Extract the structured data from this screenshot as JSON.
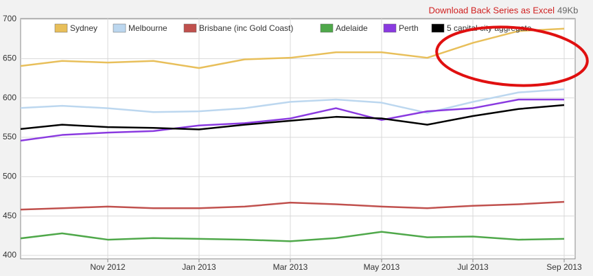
{
  "download": {
    "link": "Download Back Series as Excel",
    "size": "49Kb"
  },
  "chart_data": {
    "type": "line",
    "x": [
      null,
      null,
      "Nov 2012",
      null,
      "Jan 2013",
      null,
      "Mar 2013",
      null,
      "May 2013",
      null,
      "Jul 2013",
      null,
      "Sep 2013"
    ],
    "ylim": [
      400,
      700
    ],
    "yticks": [
      400,
      450,
      500,
      550,
      600,
      650,
      700
    ],
    "grid": true,
    "legend": "top",
    "series": [
      {
        "name": "Sydney",
        "color": "#e8bf5a",
        "values": [
          640,
          647,
          645,
          647,
          638,
          649,
          651,
          658,
          658,
          651,
          670,
          685,
          688
        ]
      },
      {
        "name": "Melbourne",
        "color": "#bcd7ef",
        "values": [
          587,
          590,
          587,
          582,
          583,
          587,
          595,
          598,
          594,
          581,
          595,
          607,
          611
        ]
      },
      {
        "name": "Brisbane (inc Gold Coast)",
        "color": "#c0504d",
        "values": [
          458,
          460,
          462,
          460,
          460,
          462,
          467,
          465,
          462,
          460,
          463,
          465,
          468
        ]
      },
      {
        "name": "Adelaide",
        "color": "#4fa84a",
        "values": [
          421,
          428,
          420,
          422,
          421,
          420,
          418,
          422,
          430,
          423,
          424,
          420,
          421
        ]
      },
      {
        "name": "Perth",
        "color": "#8a3ae0",
        "values": [
          545,
          553,
          556,
          558,
          565,
          568,
          574,
          587,
          572,
          583,
          587,
          598,
          598
        ]
      },
      {
        "name": "5 capital city aggregate",
        "color": "#000000",
        "values": [
          560,
          566,
          563,
          562,
          560,
          566,
          571,
          576,
          574,
          566,
          577,
          586,
          591
        ]
      }
    ]
  }
}
